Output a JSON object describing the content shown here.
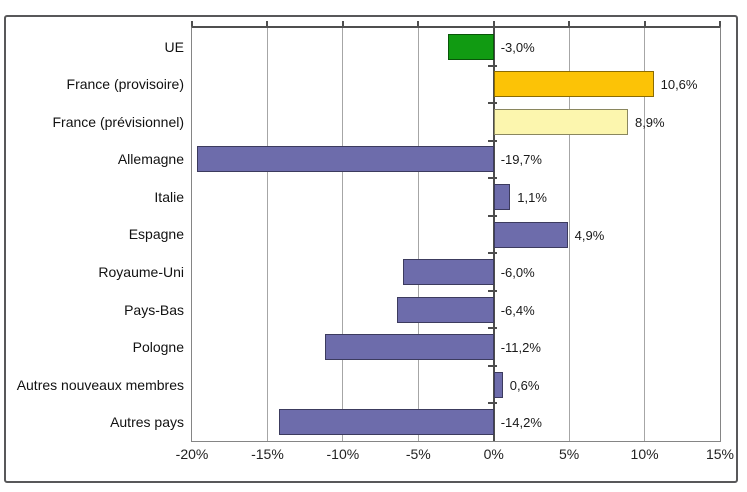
{
  "chart_data": {
    "type": "bar",
    "orientation": "horizontal",
    "xlim": [
      -20,
      15
    ],
    "x_ticks": [
      -20,
      -15,
      -10,
      -5,
      0,
      5,
      10,
      15
    ],
    "x_tick_labels": [
      "-20%",
      "-15%",
      "-10%",
      "-5%",
      "0%",
      "5%",
      "10%",
      "15%"
    ],
    "grid": true,
    "legend": false,
    "categories": [
      "UE",
      "France (provisoire)",
      "France (prévisionnel)",
      "Allemagne",
      "Italie",
      "Espagne",
      "Royaume-Uni",
      "Pays-Bas",
      "Pologne",
      "Autres nouveaux membres",
      "Autres pays"
    ],
    "values": [
      -3.0,
      10.6,
      8.9,
      -19.7,
      1.1,
      4.9,
      -6.0,
      -6.4,
      -11.2,
      0.6,
      -14.2
    ],
    "value_labels": [
      "-3,0%",
      "10,6%",
      "8,9%",
      "-19,7%",
      "1,1%",
      "4,9%",
      "-6,0%",
      "-6,4%",
      "-11,2%",
      "0,6%",
      "-14,2%"
    ],
    "bar_colors": [
      "#119b12",
      "#fcc306",
      "#fcf6ae",
      "#6d6cab",
      "#6d6cab",
      "#6d6cab",
      "#6d6cab",
      "#6d6cab",
      "#6d6cab",
      "#6d6cab",
      "#6d6cab"
    ]
  },
  "colors": {
    "green_ue": "#119b12",
    "gold_france_provisoire": "#fcc306",
    "pale_yellow_france_previsionnel": "#fcf6ae",
    "purple_default": "#6d6cab",
    "gridline": "#a6a6a6",
    "axis": "#4d4d4d",
    "plot_border": "#858585",
    "frame_border": "#58585a",
    "text": "#1a1a1a"
  }
}
